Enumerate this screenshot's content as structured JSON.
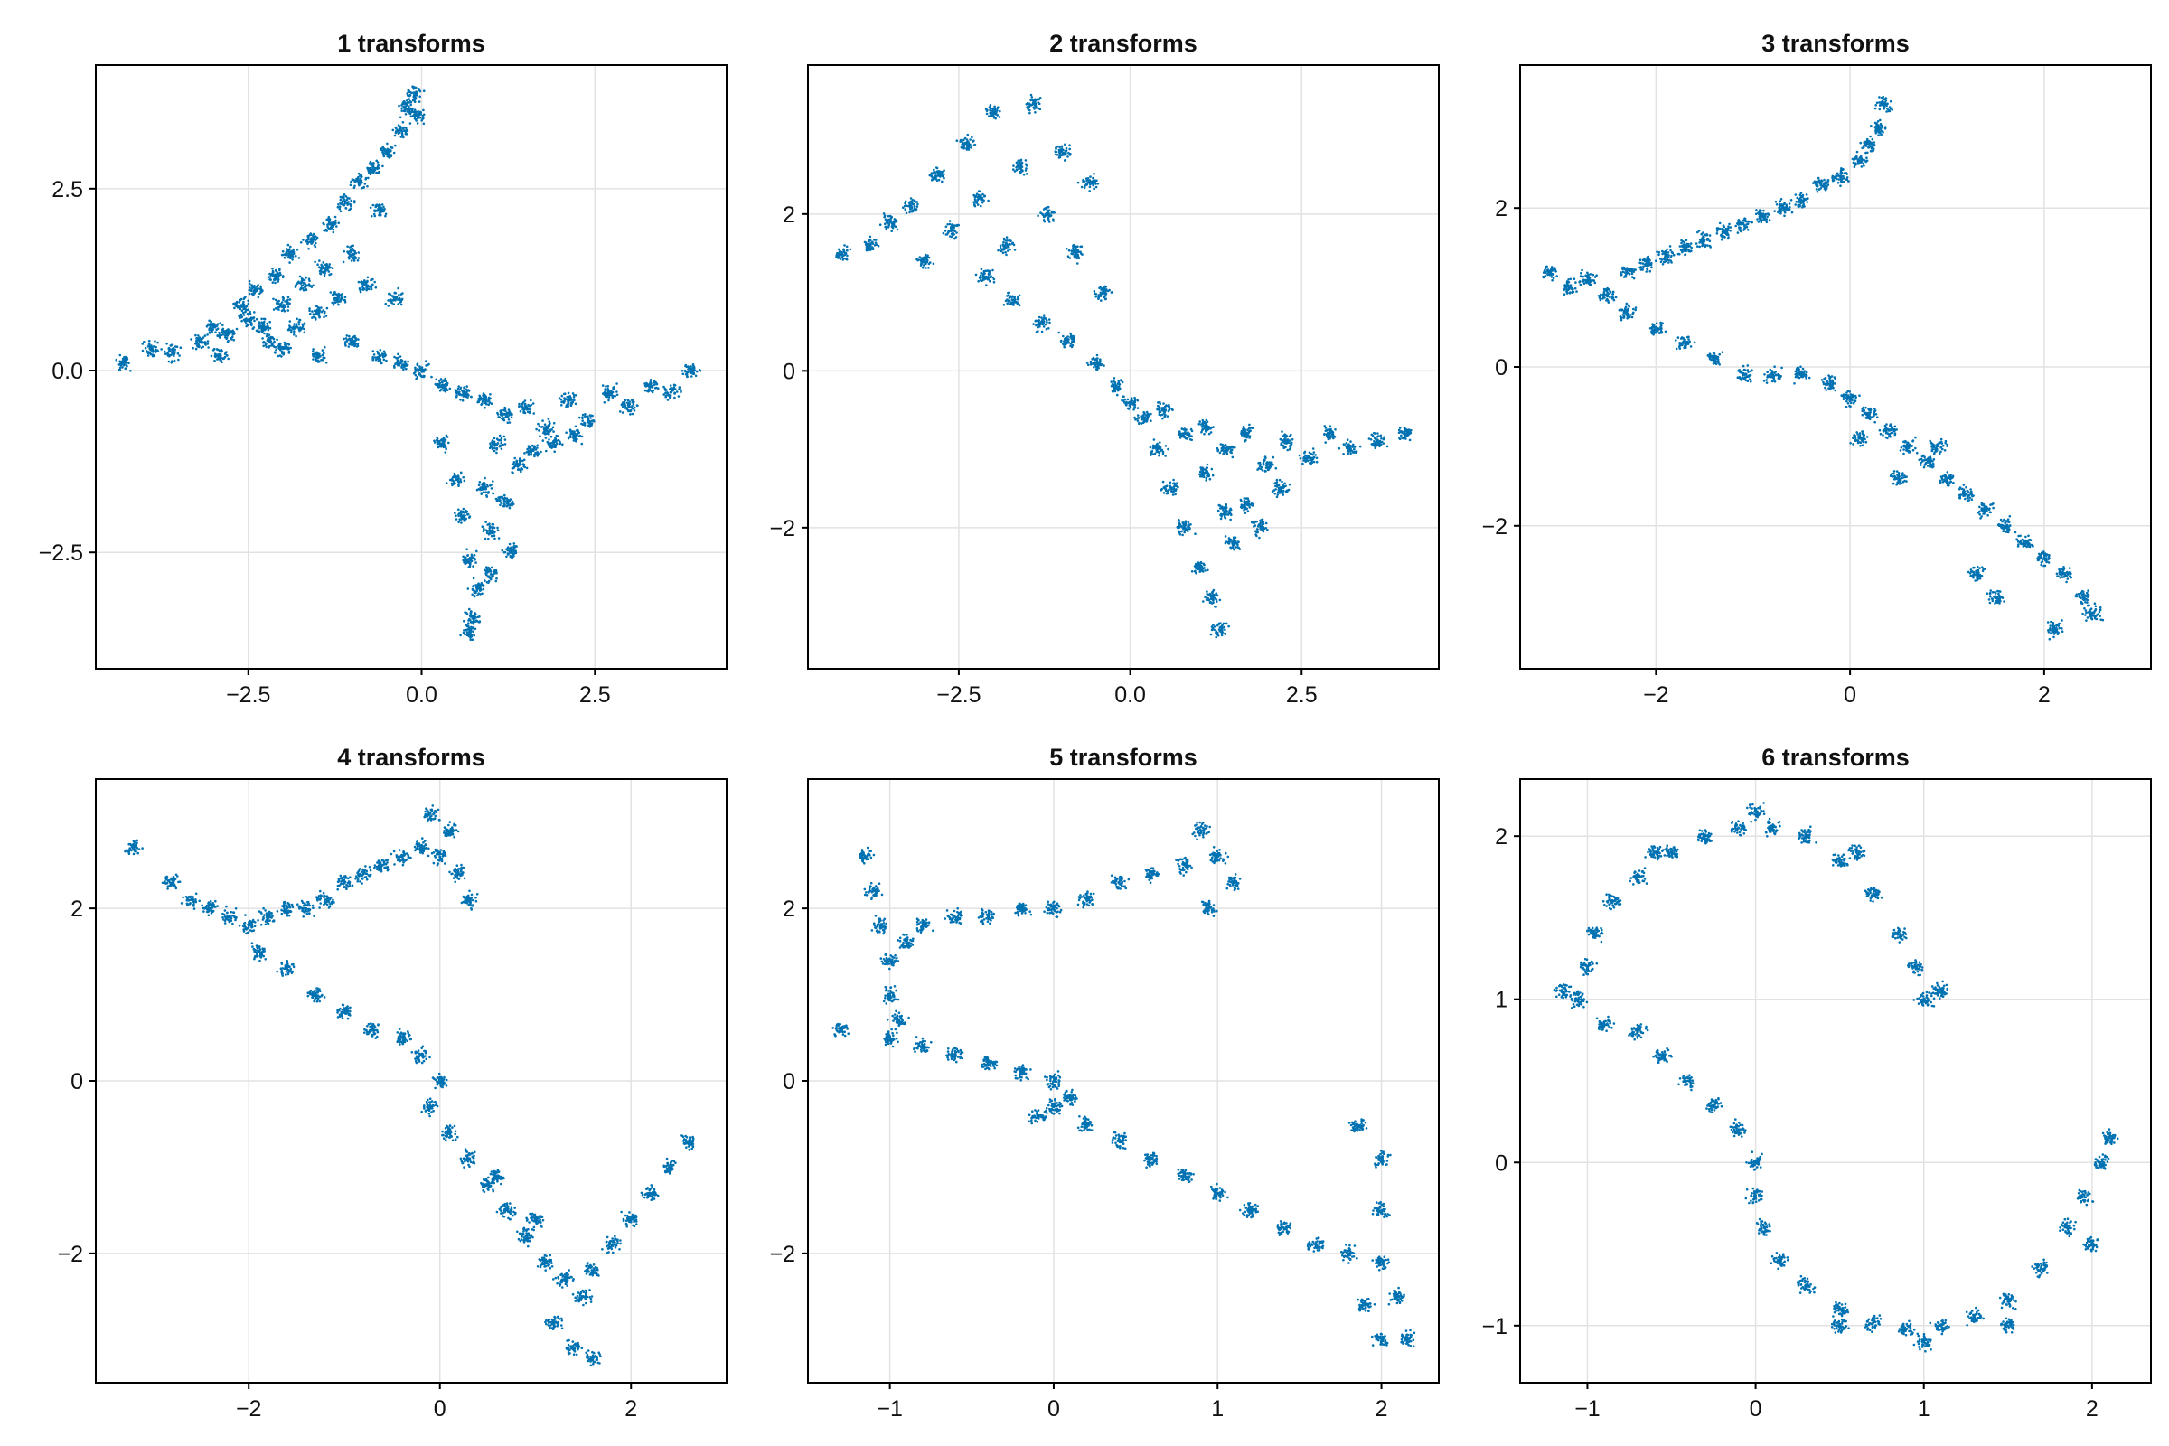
{
  "figure": {
    "point_color": "#0072b2",
    "grid_color": "#e2e2e2",
    "background": "#ffffff"
  },
  "chart_data": [
    {
      "type": "scatter",
      "title": "1 transforms",
      "xlim": [
        -4.7,
        4.4
      ],
      "ylim": [
        -4.1,
        4.2
      ],
      "xticks": [
        -2.5,
        0.0,
        2.5
      ],
      "xtick_labels": [
        "−2.5",
        "0.0",
        "2.5"
      ],
      "yticks": [
        -2.5,
        0.0,
        2.5
      ],
      "ytick_labels": [
        "−2.5",
        "0.0",
        "2.5"
      ],
      "grid": true,
      "points": [
        [
          -4.3,
          0.1
        ],
        [
          -3.9,
          0.3
        ],
        [
          -3.6,
          0.25
        ],
        [
          -3.2,
          0.4
        ],
        [
          -3.0,
          0.6
        ],
        [
          -2.8,
          0.5
        ],
        [
          -2.6,
          0.9
        ],
        [
          -2.5,
          0.7
        ],
        [
          -2.4,
          1.1
        ],
        [
          -2.3,
          0.6
        ],
        [
          -2.2,
          0.4
        ],
        [
          -2.1,
          1.3
        ],
        [
          -2.0,
          0.9
        ],
        [
          -1.9,
          1.6
        ],
        [
          -1.8,
          0.6
        ],
        [
          -1.7,
          1.2
        ],
        [
          -1.6,
          1.8
        ],
        [
          -1.5,
          0.8
        ],
        [
          -1.4,
          1.4
        ],
        [
          -1.3,
          2.0
        ],
        [
          -1.2,
          1.0
        ],
        [
          -1.1,
          2.3
        ],
        [
          -1.0,
          1.6
        ],
        [
          -0.9,
          2.6
        ],
        [
          -0.8,
          1.2
        ],
        [
          -0.7,
          2.8
        ],
        [
          -0.6,
          2.2
        ],
        [
          -0.5,
          3.0
        ],
        [
          -0.4,
          1.0
        ],
        [
          -0.3,
          3.3
        ],
        [
          -0.2,
          3.6
        ],
        [
          -0.1,
          3.8
        ],
        [
          -0.05,
          3.5
        ],
        [
          -2.9,
          0.2
        ],
        [
          -2.0,
          0.3
        ],
        [
          -1.5,
          0.2
        ],
        [
          -1.0,
          0.4
        ],
        [
          -0.6,
          0.2
        ],
        [
          -0.3,
          0.1
        ],
        [
          0.0,
          0.0
        ],
        [
          0.3,
          -0.2
        ],
        [
          0.6,
          -0.3
        ],
        [
          0.9,
          -0.4
        ],
        [
          1.2,
          -0.6
        ],
        [
          1.5,
          -0.5
        ],
        [
          1.8,
          -0.8
        ],
        [
          2.1,
          -0.4
        ],
        [
          2.4,
          -0.7
        ],
        [
          2.7,
          -0.3
        ],
        [
          3.0,
          -0.5
        ],
        [
          3.3,
          -0.2
        ],
        [
          3.6,
          -0.3
        ],
        [
          3.9,
          0.0
        ],
        [
          0.3,
          -1.0
        ],
        [
          0.5,
          -1.5
        ],
        [
          0.6,
          -2.0
        ],
        [
          0.7,
          -2.6
        ],
        [
          0.8,
          -3.0
        ],
        [
          0.75,
          -3.4
        ],
        [
          0.7,
          -3.6
        ],
        [
          1.0,
          -2.2
        ],
        [
          1.2,
          -1.8
        ],
        [
          1.4,
          -1.3
        ],
        [
          1.1,
          -1.0
        ],
        [
          1.6,
          -1.1
        ],
        [
          1.9,
          -1.0
        ],
        [
          2.2,
          -0.9
        ],
        [
          1.0,
          -2.8
        ],
        [
          1.3,
          -2.5
        ],
        [
          0.9,
          -1.6
        ]
      ]
    },
    {
      "type": "scatter",
      "title": "2 transforms",
      "xlim": [
        -4.7,
        4.5
      ],
      "ylim": [
        -3.8,
        3.9
      ],
      "xticks": [
        -2.5,
        0.0,
        2.5
      ],
      "xtick_labels": [
        "−2.5",
        "0.0",
        "2.5"
      ],
      "yticks": [
        -2,
        0,
        2
      ],
      "ytick_labels": [
        "−2",
        "0",
        "2"
      ],
      "grid": true,
      "points": [
        [
          -4.2,
          1.5
        ],
        [
          -3.8,
          1.6
        ],
        [
          -3.5,
          1.9
        ],
        [
          -3.2,
          2.1
        ],
        [
          -3.0,
          1.4
        ],
        [
          -2.8,
          2.5
        ],
        [
          -2.6,
          1.8
        ],
        [
          -2.4,
          2.9
        ],
        [
          -2.2,
          2.2
        ],
        [
          -2.0,
          3.3
        ],
        [
          -1.8,
          1.6
        ],
        [
          -1.6,
          2.6
        ],
        [
          -1.4,
          3.4
        ],
        [
          -1.2,
          2.0
        ],
        [
          -1.0,
          2.8
        ],
        [
          -0.8,
          1.5
        ],
        [
          -0.6,
          2.4
        ],
        [
          -0.4,
          1.0
        ],
        [
          -2.1,
          1.2
        ],
        [
          -1.7,
          0.9
        ],
        [
          -1.3,
          0.6
        ],
        [
          -0.9,
          0.4
        ],
        [
          -0.5,
          0.1
        ],
        [
          -0.2,
          -0.2
        ],
        [
          0.0,
          -0.4
        ],
        [
          0.2,
          -0.6
        ],
        [
          0.5,
          -0.5
        ],
        [
          0.8,
          -0.8
        ],
        [
          1.1,
          -0.7
        ],
        [
          1.4,
          -1.0
        ],
        [
          1.7,
          -0.8
        ],
        [
          2.0,
          -1.2
        ],
        [
          2.3,
          -0.9
        ],
        [
          2.6,
          -1.1
        ],
        [
          2.9,
          -0.8
        ],
        [
          3.2,
          -1.0
        ],
        [
          3.6,
          -0.9
        ],
        [
          4.0,
          -0.8
        ],
        [
          0.6,
          -1.5
        ],
        [
          0.8,
          -2.0
        ],
        [
          1.0,
          -2.5
        ],
        [
          1.2,
          -2.9
        ],
        [
          1.3,
          -3.3
        ],
        [
          1.5,
          -2.2
        ],
        [
          1.7,
          -1.7
        ],
        [
          1.9,
          -2.0
        ],
        [
          2.2,
          -1.5
        ],
        [
          0.4,
          -1.0
        ],
        [
          1.1,
          -1.3
        ],
        [
          1.4,
          -1.8
        ]
      ]
    },
    {
      "type": "scatter",
      "title": "3 transforms",
      "xlim": [
        -3.4,
        3.1
      ],
      "ylim": [
        -3.8,
        3.8
      ],
      "xticks": [
        -2,
        0,
        2
      ],
      "xtick_labels": [
        "−2",
        "0",
        "2"
      ],
      "yticks": [
        -2,
        0,
        2
      ],
      "ytick_labels": [
        "−2",
        "0",
        "2"
      ],
      "grid": true,
      "points": [
        [
          -3.1,
          1.2
        ],
        [
          -2.9,
          1.0
        ],
        [
          -2.7,
          1.1
        ],
        [
          -2.5,
          0.9
        ],
        [
          -2.3,
          1.2
        ],
        [
          -2.1,
          1.3
        ],
        [
          -1.9,
          1.4
        ],
        [
          -1.7,
          1.5
        ],
        [
          -1.5,
          1.6
        ],
        [
          -1.3,
          1.7
        ],
        [
          -1.1,
          1.8
        ],
        [
          -0.9,
          1.9
        ],
        [
          -0.7,
          2.0
        ],
        [
          -0.5,
          2.1
        ],
        [
          -0.3,
          2.3
        ],
        [
          -0.1,
          2.4
        ],
        [
          0.1,
          2.6
        ],
        [
          0.2,
          2.8
        ],
        [
          0.3,
          3.0
        ],
        [
          0.35,
          3.3
        ],
        [
          -2.3,
          0.7
        ],
        [
          -2.0,
          0.5
        ],
        [
          -1.7,
          0.3
        ],
        [
          -1.4,
          0.1
        ],
        [
          -1.1,
          -0.1
        ],
        [
          -0.8,
          -0.1
        ],
        [
          -0.5,
          -0.1
        ],
        [
          -0.2,
          -0.2
        ],
        [
          0.0,
          -0.4
        ],
        [
          0.2,
          -0.6
        ],
        [
          0.4,
          -0.8
        ],
        [
          0.6,
          -1.0
        ],
        [
          0.8,
          -1.2
        ],
        [
          1.0,
          -1.4
        ],
        [
          1.2,
          -1.6
        ],
        [
          1.4,
          -1.8
        ],
        [
          1.6,
          -2.0
        ],
        [
          1.8,
          -2.2
        ],
        [
          2.0,
          -2.4
        ],
        [
          2.2,
          -2.6
        ],
        [
          2.4,
          -2.9
        ],
        [
          2.5,
          -3.1
        ],
        [
          1.3,
          -2.6
        ],
        [
          1.5,
          -2.9
        ],
        [
          2.1,
          -3.3
        ],
        [
          0.1,
          -0.9
        ],
        [
          0.5,
          -1.4
        ],
        [
          0.9,
          -1.0
        ]
      ]
    },
    {
      "type": "scatter",
      "title": "4 transforms",
      "xlim": [
        -3.6,
        3.0
      ],
      "ylim": [
        -3.5,
        3.5
      ],
      "xticks": [
        -2,
        0,
        2
      ],
      "xtick_labels": [
        "−2",
        "0",
        "2"
      ],
      "yticks": [
        -2,
        0,
        2
      ],
      "ytick_labels": [
        "−2",
        "0",
        "2"
      ],
      "grid": true,
      "points": [
        [
          -3.2,
          2.7
        ],
        [
          -2.8,
          2.3
        ],
        [
          -2.6,
          2.1
        ],
        [
          -2.4,
          2.0
        ],
        [
          -2.2,
          1.9
        ],
        [
          -2.0,
          1.8
        ],
        [
          -1.8,
          1.9
        ],
        [
          -1.6,
          2.0
        ],
        [
          -1.4,
          2.0
        ],
        [
          -1.2,
          2.1
        ],
        [
          -1.0,
          2.3
        ],
        [
          -0.8,
          2.4
        ],
        [
          -0.6,
          2.5
        ],
        [
          -0.4,
          2.6
        ],
        [
          -0.2,
          2.7
        ],
        [
          0.0,
          2.6
        ],
        [
          0.2,
          2.4
        ],
        [
          0.3,
          2.1
        ],
        [
          -0.1,
          3.1
        ],
        [
          0.1,
          2.9
        ],
        [
          -1.9,
          1.5
        ],
        [
          -1.6,
          1.3
        ],
        [
          -1.3,
          1.0
        ],
        [
          -1.0,
          0.8
        ],
        [
          -0.7,
          0.6
        ],
        [
          -0.4,
          0.5
        ],
        [
          -0.2,
          0.3
        ],
        [
          0.0,
          0.0
        ],
        [
          -0.1,
          -0.3
        ],
        [
          0.1,
          -0.6
        ],
        [
          0.3,
          -0.9
        ],
        [
          0.5,
          -1.2
        ],
        [
          0.7,
          -1.5
        ],
        [
          0.9,
          -1.8
        ],
        [
          1.1,
          -2.1
        ],
        [
          1.3,
          -2.3
        ],
        [
          1.5,
          -2.5
        ],
        [
          1.6,
          -2.2
        ],
        [
          1.8,
          -1.9
        ],
        [
          2.0,
          -1.6
        ],
        [
          2.2,
          -1.3
        ],
        [
          2.4,
          -1.0
        ],
        [
          2.6,
          -0.7
        ],
        [
          1.2,
          -2.8
        ],
        [
          1.4,
          -3.1
        ],
        [
          1.6,
          -3.2
        ],
        [
          0.6,
          -1.1
        ],
        [
          1.0,
          -1.6
        ]
      ]
    },
    {
      "type": "scatter",
      "title": "5 transforms",
      "xlim": [
        -1.5,
        2.35
      ],
      "ylim": [
        -3.5,
        3.5
      ],
      "xticks": [
        -1,
        0,
        1,
        2
      ],
      "xtick_labels": [
        "−1",
        "0",
        "1",
        "2"
      ],
      "yticks": [
        -2,
        0,
        2
      ],
      "ytick_labels": [
        "−2",
        "0",
        "2"
      ],
      "grid": true,
      "points": [
        [
          -1.15,
          2.6
        ],
        [
          -1.1,
          2.2
        ],
        [
          -1.05,
          1.8
        ],
        [
          -1.0,
          1.4
        ],
        [
          -1.0,
          1.0
        ],
        [
          -0.95,
          0.7
        ],
        [
          -0.9,
          1.6
        ],
        [
          -0.8,
          1.8
        ],
        [
          -0.6,
          1.9
        ],
        [
          -0.4,
          1.9
        ],
        [
          -0.2,
          2.0
        ],
        [
          0.0,
          2.0
        ],
        [
          0.2,
          2.1
        ],
        [
          0.4,
          2.3
        ],
        [
          0.6,
          2.4
        ],
        [
          0.8,
          2.5
        ],
        [
          0.9,
          2.9
        ],
        [
          1.0,
          2.6
        ],
        [
          1.1,
          2.3
        ],
        [
          0.95,
          2.0
        ],
        [
          -1.3,
          0.6
        ],
        [
          -1.0,
          0.5
        ],
        [
          -0.8,
          0.4
        ],
        [
          -0.6,
          0.3
        ],
        [
          -0.4,
          0.2
        ],
        [
          -0.2,
          0.1
        ],
        [
          0.0,
          0.0
        ],
        [
          0.0,
          -0.3
        ],
        [
          0.2,
          -0.5
        ],
        [
          0.4,
          -0.7
        ],
        [
          0.6,
          -0.9
        ],
        [
          0.8,
          -1.1
        ],
        [
          1.0,
          -1.3
        ],
        [
          1.2,
          -1.5
        ],
        [
          1.4,
          -1.7
        ],
        [
          1.6,
          -1.9
        ],
        [
          1.8,
          -2.0
        ],
        [
          2.0,
          -2.1
        ],
        [
          2.1,
          -2.5
        ],
        [
          2.0,
          -1.5
        ],
        [
          2.0,
          -0.9
        ],
        [
          1.85,
          -0.5
        ],
        [
          1.9,
          -2.6
        ],
        [
          2.0,
          -3.0
        ],
        [
          2.15,
          -3.0
        ],
        [
          -0.1,
          -0.4
        ],
        [
          0.1,
          -0.2
        ]
      ]
    },
    {
      "type": "scatter",
      "title": "6 transforms",
      "xlim": [
        -1.4,
        2.35
      ],
      "ylim": [
        -1.35,
        2.35
      ],
      "xticks": [
        -1,
        0,
        1,
        2
      ],
      "xtick_labels": [
        "−1",
        "0",
        "1",
        "2"
      ],
      "yticks": [
        -1,
        0,
        1,
        2
      ],
      "ytick_labels": [
        "−1",
        "0",
        "1",
        "2"
      ],
      "grid": true,
      "points": [
        [
          -1.05,
          1.0
        ],
        [
          -1.0,
          1.2
        ],
        [
          -0.95,
          1.4
        ],
        [
          -0.85,
          1.6
        ],
        [
          -0.7,
          1.75
        ],
        [
          -0.5,
          1.9
        ],
        [
          -0.3,
          2.0
        ],
        [
          -0.1,
          2.05
        ],
        [
          0.1,
          2.05
        ],
        [
          0.3,
          2.0
        ],
        [
          0.5,
          1.85
        ],
        [
          0.7,
          1.65
        ],
        [
          0.85,
          1.4
        ],
        [
          0.95,
          1.2
        ],
        [
          1.0,
          1.0
        ],
        [
          1.1,
          1.05
        ],
        [
          -1.15,
          1.05
        ],
        [
          0.0,
          2.15
        ],
        [
          -0.6,
          1.9
        ],
        [
          0.6,
          1.9
        ],
        [
          -0.9,
          0.85
        ],
        [
          -0.7,
          0.8
        ],
        [
          -0.55,
          0.65
        ],
        [
          -0.4,
          0.5
        ],
        [
          -0.25,
          0.35
        ],
        [
          -0.1,
          0.2
        ],
        [
          0.0,
          0.0
        ],
        [
          0.0,
          -0.2
        ],
        [
          0.05,
          -0.4
        ],
        [
          0.15,
          -0.6
        ],
        [
          0.3,
          -0.75
        ],
        [
          0.5,
          -0.9
        ],
        [
          0.7,
          -0.98
        ],
        [
          0.9,
          -1.02
        ],
        [
          1.1,
          -1.0
        ],
        [
          1.3,
          -0.95
        ],
        [
          1.5,
          -0.85
        ],
        [
          1.7,
          -0.65
        ],
        [
          1.85,
          -0.4
        ],
        [
          1.95,
          -0.2
        ],
        [
          2.05,
          0.0
        ],
        [
          2.1,
          0.15
        ],
        [
          1.0,
          -1.1
        ],
        [
          0.5,
          -1.0
        ],
        [
          1.5,
          -1.0
        ],
        [
          2.0,
          -0.5
        ]
      ]
    }
  ]
}
